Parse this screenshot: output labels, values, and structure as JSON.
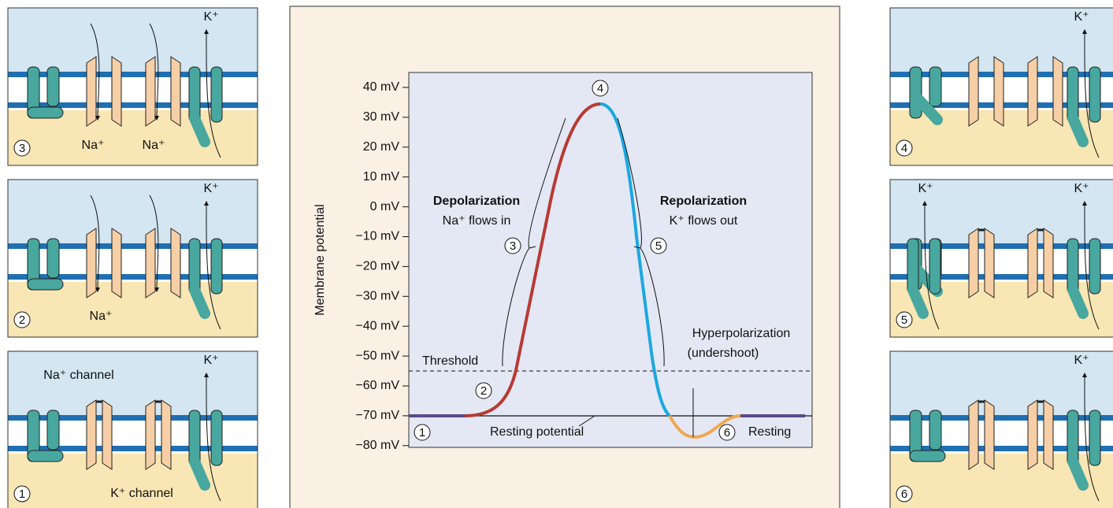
{
  "left_panels": [
    {
      "number": "3",
      "labels": [
        "Na⁺",
        "Na⁺",
        "K⁺"
      ]
    },
    {
      "number": "2",
      "labels": [
        "Na⁺",
        "K⁺"
      ]
    },
    {
      "number": "1",
      "labels": [
        "Na⁺ channel",
        "K⁺ channel",
        "K⁺"
      ]
    }
  ],
  "right_panels": [
    {
      "number": "4",
      "labels": [
        "K⁺"
      ]
    },
    {
      "number": "5",
      "labels": [
        "K⁺",
        "K⁺"
      ]
    },
    {
      "number": "6",
      "labels": [
        "K⁺"
      ]
    }
  ],
  "graph": {
    "y_label": "Membrane potential",
    "yticks": [
      "40 mV",
      "30 mV",
      "20 mV",
      "10 mV",
      "0 mV",
      "−10 mV",
      "−20 mV",
      "−30 mV",
      "−40 mV",
      "−50 mV",
      "−60 mV",
      "−70 mV",
      "−80 mV"
    ],
    "depolarization": "Depolarization",
    "na_flows": "Na⁺ flows in",
    "repolarization": "Repolarization",
    "k_flows": "K⁺ flows out",
    "threshold": "Threshold",
    "resting_potential": "Resting potential",
    "hyper": "Hyperpolarization",
    "undershoot": "(undershoot)",
    "resting": "Resting",
    "steps": [
      "1",
      "2",
      "3",
      "4",
      "5",
      "6"
    ]
  }
}
